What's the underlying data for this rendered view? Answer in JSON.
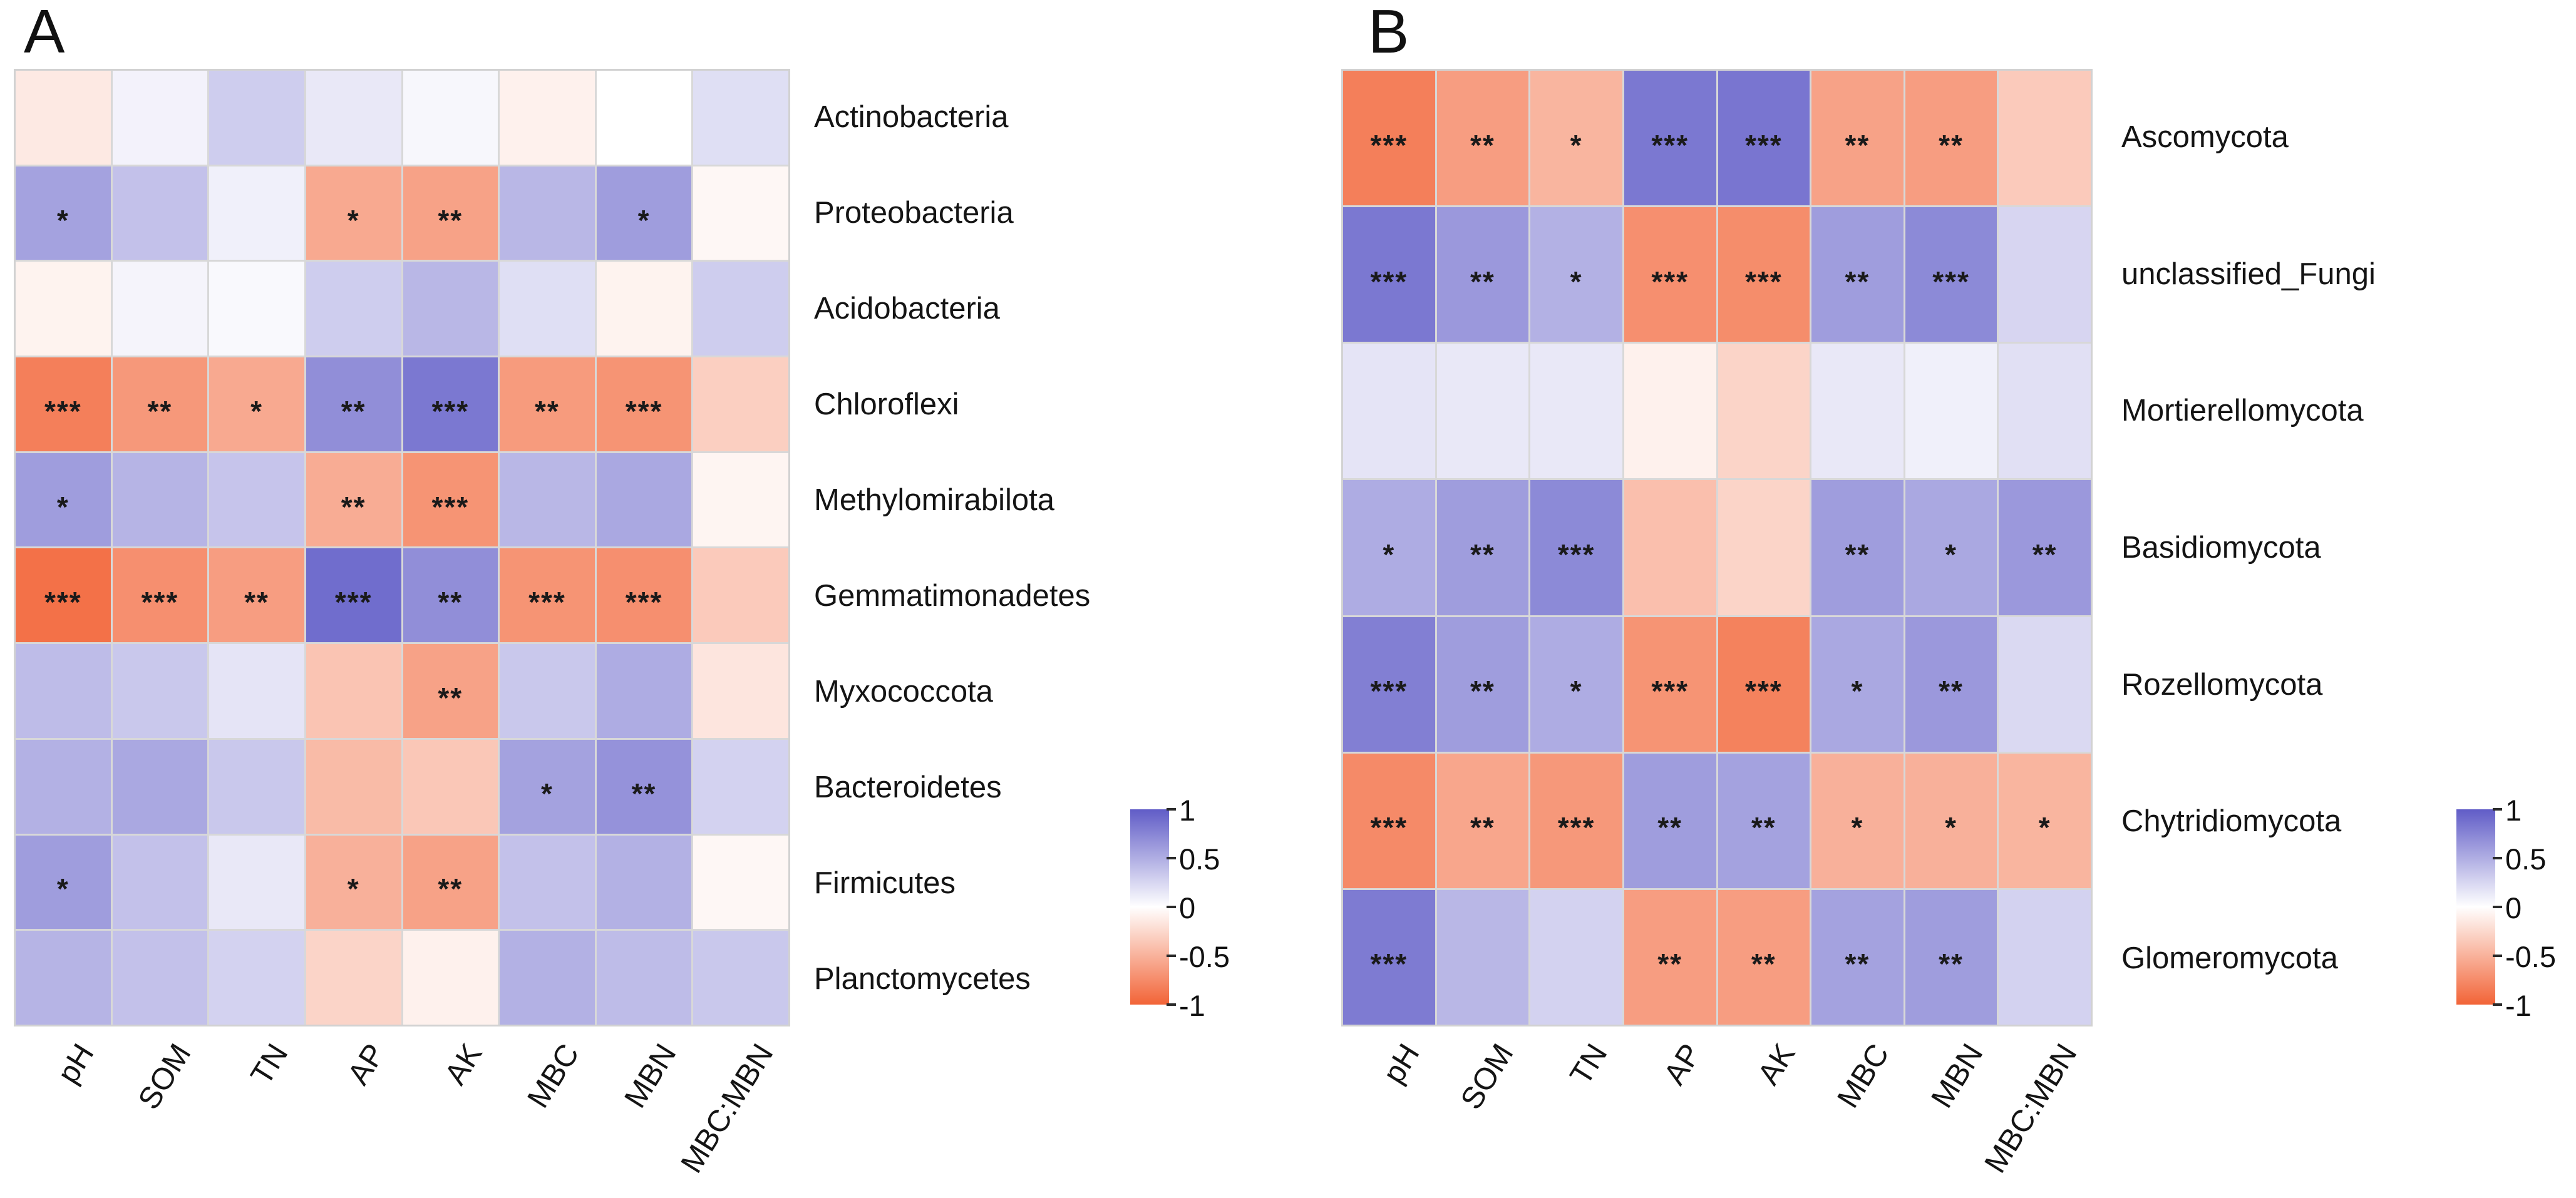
{
  "figure": {
    "background": "#ffffff",
    "panel_letters": [
      "A",
      "B"
    ]
  },
  "legend": {
    "ticks": [
      "1",
      "0.5",
      "0",
      "-0.5",
      "-1"
    ],
    "orientation": "vertical",
    "max_color": "#605cc7",
    "mid_color": "#ffffff",
    "min_color": "#f26437"
  },
  "chart_data": [
    {
      "type": "heatmap",
      "panel_label": "A",
      "description": "Correlation heatmap of bacterial phyla vs soil properties",
      "columns": [
        "pH",
        "SOM",
        "TN",
        "AP",
        "AK",
        "MBC",
        "MBN",
        "MBC:MBN"
      ],
      "rows": [
        "Actinobacteria",
        "Proteobacteria",
        "Acidobacteria",
        "Chloroflexi",
        "Methylomirabilota",
        "Gemmatimonadetes",
        "Myxococcota",
        "Bacteroidetes",
        "Firmicutes",
        "Planctomycetes"
      ],
      "values": [
        [
          -0.1,
          0.05,
          0.25,
          0.1,
          0.03,
          -0.06,
          0.0,
          0.15
        ],
        [
          0.52,
          0.32,
          0.06,
          -0.5,
          -0.55,
          0.38,
          0.55,
          -0.03
        ],
        [
          -0.05,
          0.04,
          0.02,
          0.25,
          0.38,
          0.15,
          -0.05,
          0.25
        ],
        [
          -0.8,
          -0.62,
          -0.5,
          0.65,
          0.8,
          -0.6,
          -0.65,
          -0.25
        ],
        [
          0.55,
          0.4,
          0.3,
          -0.48,
          -0.65,
          0.38,
          0.48,
          -0.04
        ],
        [
          -0.9,
          -0.68,
          -0.58,
          0.88,
          0.65,
          -0.65,
          -0.68,
          -0.28
        ],
        [
          0.35,
          0.28,
          0.12,
          -0.32,
          -0.55,
          0.28,
          0.45,
          -0.12
        ],
        [
          0.42,
          0.48,
          0.28,
          -0.38,
          -0.3,
          0.52,
          0.62,
          0.22
        ],
        [
          0.55,
          0.32,
          0.1,
          -0.45,
          -0.55,
          0.32,
          0.42,
          -0.03
        ],
        [
          0.4,
          0.32,
          0.22,
          -0.22,
          -0.06,
          0.42,
          0.35,
          0.28
        ]
      ],
      "significance": [
        [
          "",
          "",
          "",
          "",
          "",
          "",
          "",
          ""
        ],
        [
          "*",
          "",
          "",
          "*",
          "**",
          "",
          "*",
          ""
        ],
        [
          "",
          "",
          "",
          "",
          "",
          "",
          "",
          ""
        ],
        [
          "***",
          "**",
          "*",
          "**",
          "***",
          "**",
          "***",
          ""
        ],
        [
          "*",
          "",
          "",
          "**",
          "***",
          "",
          "",
          ""
        ],
        [
          "***",
          "***",
          "**",
          "***",
          "**",
          "***",
          "***",
          ""
        ],
        [
          "",
          "",
          "",
          "",
          "**",
          "",
          "",
          ""
        ],
        [
          "",
          "",
          "",
          "",
          "",
          "*",
          "**",
          ""
        ],
        [
          "*",
          "",
          "",
          "*",
          "**",
          "",
          "",
          ""
        ],
        [
          "",
          "",
          "",
          "",
          "",
          "",
          "",
          ""
        ]
      ],
      "colorscale": {
        "min": -1,
        "max": 1,
        "min_color": "#f26437",
        "mid_color": "#ffffff",
        "max_color": "#605cc7"
      },
      "legend_ticks": [
        "1",
        "0.5",
        "0",
        "-0.5",
        "-1"
      ]
    },
    {
      "type": "heatmap",
      "panel_label": "B",
      "description": "Correlation heatmap of fungal phyla vs soil properties",
      "columns": [
        "pH",
        "SOM",
        "TN",
        "AP",
        "AK",
        "MBC",
        "MBN",
        "MBC:MBN"
      ],
      "rows": [
        "Ascomycota",
        "unclassified_Fungi",
        "Mortierellomycota",
        "Basidiomycota",
        "Rozellomycota",
        "Chytridiomycota",
        "Glomeromycota"
      ],
      "values": [
        [
          -0.8,
          -0.58,
          -0.42,
          0.8,
          0.82,
          -0.55,
          -0.58,
          -0.28
        ],
        [
          0.8,
          0.58,
          0.42,
          -0.68,
          -0.7,
          0.55,
          0.68,
          0.2
        ],
        [
          0.12,
          0.1,
          0.1,
          -0.06,
          -0.22,
          0.1,
          0.06,
          0.14
        ],
        [
          0.45,
          0.55,
          0.68,
          -0.35,
          -0.22,
          0.55,
          0.48,
          0.58
        ],
        [
          0.75,
          0.55,
          0.45,
          -0.65,
          -0.78,
          0.48,
          0.58,
          0.18
        ],
        [
          -0.72,
          -0.52,
          -0.62,
          0.55,
          0.52,
          -0.45,
          -0.45,
          -0.42
        ],
        [
          0.78,
          0.38,
          0.22,
          -0.58,
          -0.58,
          0.52,
          0.55,
          0.22
        ]
      ],
      "significance": [
        [
          "***",
          "**",
          "*",
          "***",
          "***",
          "**",
          "**",
          ""
        ],
        [
          "***",
          "**",
          "*",
          "***",
          "***",
          "**",
          "***",
          ""
        ],
        [
          "",
          "",
          "",
          "",
          "",
          "",
          "",
          ""
        ],
        [
          "*",
          "**",
          "***",
          "",
          "",
          "**",
          "*",
          "**"
        ],
        [
          "***",
          "**",
          "*",
          "***",
          "***",
          "*",
          "**",
          ""
        ],
        [
          "***",
          "**",
          "***",
          "**",
          "**",
          "*",
          "*",
          "*"
        ],
        [
          "***",
          "",
          "",
          "**",
          "**",
          "**",
          "**",
          ""
        ]
      ],
      "colorscale": {
        "min": -1,
        "max": 1,
        "min_color": "#f26437",
        "mid_color": "#ffffff",
        "max_color": "#605cc7"
      },
      "legend_ticks": [
        "1",
        "0.5",
        "0",
        "-0.5",
        "-1"
      ]
    }
  ]
}
